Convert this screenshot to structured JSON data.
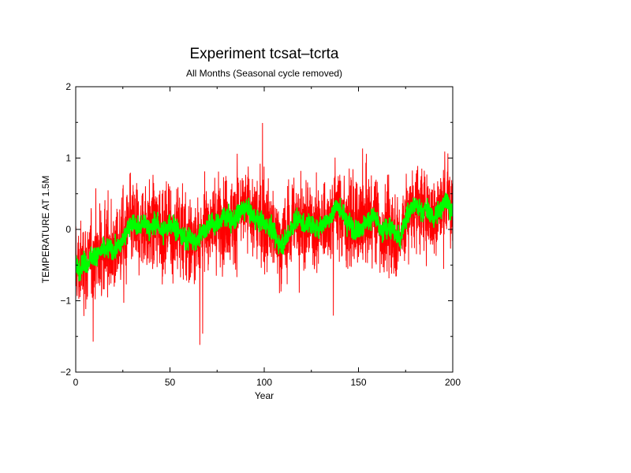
{
  "chart_data": {
    "type": "line",
    "title": "Experiment tcsat–tcrta",
    "subtitle": "All Months (Seasonal cycle removed)",
    "xlabel": "Year",
    "ylabel": "TEMPERATURE AT 1.5M",
    "xlim": [
      0,
      200
    ],
    "ylim": [
      -2,
      2
    ],
    "xticks": [
      0,
      50,
      100,
      150,
      200
    ],
    "xtick_labels": [
      "0",
      "50",
      "100",
      "150",
      "200"
    ],
    "yticks": [
      -2,
      -1,
      0,
      1,
      2
    ],
    "ytick_labels": [
      "−2",
      "−1",
      "0",
      "1",
      "2"
    ],
    "grid": false,
    "series": [
      {
        "color": "#ff0000",
        "note": "monthly anomalies",
        "x": [
          0,
          2,
          4,
          6,
          8,
          10,
          12,
          14,
          16,
          18,
          20,
          22,
          24,
          26,
          28,
          30,
          32,
          34,
          36,
          38,
          40,
          42,
          44,
          46,
          48,
          50,
          52,
          54,
          56,
          58,
          60,
          62,
          64,
          66,
          68,
          70,
          72,
          74,
          76,
          78,
          80,
          82,
          84,
          86,
          88,
          90,
          92,
          94,
          96,
          98,
          100,
          102,
          104,
          106,
          108,
          110,
          112,
          114,
          116,
          118,
          120,
          122,
          124,
          126,
          128,
          130,
          132,
          134,
          136,
          138,
          140,
          142,
          144,
          146,
          148,
          150,
          152,
          154,
          156,
          158,
          160,
          162,
          164,
          166,
          168,
          170,
          172,
          174,
          176,
          178,
          180,
          182,
          184,
          186,
          188,
          190,
          192,
          194,
          196,
          198,
          200
        ],
        "values": [
          -0.5,
          -0.55,
          -0.45,
          -0.5,
          -0.4,
          -0.35,
          -0.35,
          -0.3,
          -0.3,
          -0.25,
          -0.3,
          -0.25,
          -0.2,
          -0.1,
          0.05,
          0.1,
          0.05,
          0.0,
          0.1,
          0.05,
          0.0,
          0.1,
          0.05,
          -0.05,
          0.0,
          0.1,
          0.05,
          0.0,
          -0.1,
          -0.15,
          -0.1,
          -0.15,
          -0.2,
          -0.05,
          0.0,
          0.05,
          0.1,
          0.05,
          0.1,
          0.15,
          0.2,
          0.15,
          0.1,
          0.2,
          0.25,
          0.3,
          0.25,
          0.2,
          0.15,
          0.1,
          0.1,
          0.05,
          0.0,
          -0.1,
          -0.2,
          -0.2,
          -0.1,
          0.0,
          0.1,
          0.15,
          0.1,
          0.05,
          0.1,
          0.05,
          0.0,
          0.05,
          0.1,
          0.15,
          0.2,
          0.35,
          0.3,
          0.2,
          0.1,
          0.05,
          0.0,
          0.0,
          0.05,
          0.1,
          0.15,
          0.2,
          0.1,
          -0.05,
          0.0,
          0.05,
          0.0,
          -0.1,
          -0.15,
          0.1,
          0.2,
          0.3,
          0.35,
          0.3,
          0.25,
          0.3,
          0.2,
          0.15,
          0.25,
          0.3,
          0.45,
          0.35,
          0.2
        ]
      },
      {
        "color": "#00ff00",
        "note": "smoothed",
        "x": [
          0,
          2,
          4,
          6,
          8,
          10,
          12,
          14,
          16,
          18,
          20,
          22,
          24,
          26,
          28,
          30,
          32,
          34,
          36,
          38,
          40,
          42,
          44,
          46,
          48,
          50,
          52,
          54,
          56,
          58,
          60,
          62,
          64,
          66,
          68,
          70,
          72,
          74,
          76,
          78,
          80,
          82,
          84,
          86,
          88,
          90,
          92,
          94,
          96,
          98,
          100,
          102,
          104,
          106,
          108,
          110,
          112,
          114,
          116,
          118,
          120,
          122,
          124,
          126,
          128,
          130,
          132,
          134,
          136,
          138,
          140,
          142,
          144,
          146,
          148,
          150,
          152,
          154,
          156,
          158,
          160,
          162,
          164,
          166,
          168,
          170,
          172,
          174,
          176,
          178,
          180,
          182,
          184,
          186,
          188,
          190,
          192,
          194,
          196,
          198,
          200
        ],
        "values": [
          -0.5,
          -0.55,
          -0.45,
          -0.5,
          -0.4,
          -0.35,
          -0.35,
          -0.3,
          -0.3,
          -0.25,
          -0.3,
          -0.25,
          -0.2,
          -0.1,
          0.05,
          0.1,
          0.05,
          0.0,
          0.1,
          0.05,
          0.0,
          0.1,
          0.05,
          -0.05,
          0.0,
          0.1,
          0.05,
          0.0,
          -0.1,
          -0.15,
          -0.1,
          -0.15,
          -0.2,
          -0.05,
          0.0,
          0.05,
          0.1,
          0.05,
          0.1,
          0.15,
          0.2,
          0.15,
          0.1,
          0.2,
          0.25,
          0.3,
          0.25,
          0.2,
          0.15,
          0.1,
          0.1,
          0.05,
          0.0,
          -0.1,
          -0.2,
          -0.2,
          -0.1,
          0.0,
          0.1,
          0.15,
          0.1,
          0.05,
          0.1,
          0.05,
          0.0,
          0.05,
          0.1,
          0.15,
          0.2,
          0.35,
          0.3,
          0.2,
          0.1,
          0.05,
          0.0,
          0.0,
          0.05,
          0.1,
          0.15,
          0.2,
          0.1,
          -0.05,
          0.0,
          0.05,
          0.0,
          -0.1,
          -0.15,
          0.1,
          0.2,
          0.3,
          0.35,
          0.3,
          0.25,
          0.3,
          0.2,
          0.15,
          0.25,
          0.3,
          0.45,
          0.35,
          0.2
        ]
      }
    ]
  }
}
